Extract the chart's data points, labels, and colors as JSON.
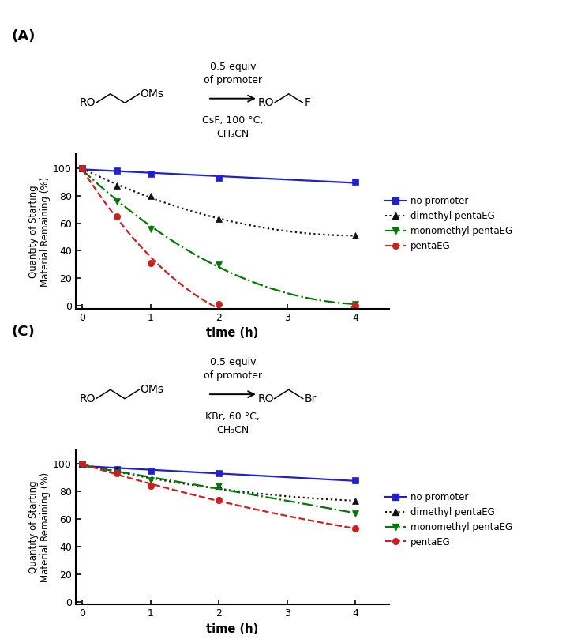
{
  "panel_A": {
    "label": "(A)",
    "reaction_text_top": "0.5 equiv\nof promoter",
    "reaction_text_bottom": "CsF, 100 °C,\nCH₃CN",
    "leaving_right": "F",
    "series": {
      "no_promoter": {
        "x": [
          0,
          0.5,
          1,
          2,
          4
        ],
        "y": [
          100,
          98,
          96,
          93,
          90
        ],
        "color": "#2020CC",
        "marker": "s",
        "linestyle": "-",
        "label": "no promoter"
      },
      "dimethyl": {
        "x": [
          0,
          0.5,
          1,
          2,
          4
        ],
        "y": [
          100,
          87,
          80,
          63,
          51
        ],
        "color": "#111111",
        "marker": "^",
        "linestyle": ":",
        "label": "dimethyl pentaEG"
      },
      "monomethyl": {
        "x": [
          0,
          0.5,
          1,
          2,
          4
        ],
        "y": [
          100,
          76,
          56,
          30,
          1
        ],
        "color": "#007700",
        "marker": "v",
        "linestyle": "-.",
        "label": "monomethyl pentaEG"
      },
      "pentaEG": {
        "x": [
          0,
          0.5,
          1,
          2,
          4
        ],
        "y": [
          100,
          65,
          31,
          1,
          0
        ],
        "color": "#CC2020",
        "marker": "o",
        "linestyle": "--",
        "label": "pentaEG"
      }
    },
    "xlabel": "time (h)",
    "ylabel": "Quantity of Starting\nMaterial Remaining (%)",
    "xlim": [
      -0.1,
      4.5
    ],
    "ylim": [
      -2,
      110
    ],
    "xticks": [
      0,
      1,
      2,
      3,
      4
    ],
    "yticks": [
      0,
      20,
      40,
      60,
      80,
      100
    ]
  },
  "panel_C": {
    "label": "(C)",
    "reaction_text_top": "0.5 equiv\nof promoter",
    "reaction_text_bottom": "KBr, 60 °C,\nCH₃CN",
    "leaving_right": "Br",
    "series": {
      "no_promoter": {
        "x": [
          0,
          0.5,
          1,
          2,
          4
        ],
        "y": [
          100,
          96,
          95,
          93,
          88
        ],
        "color": "#2020CC",
        "marker": "s",
        "linestyle": "-",
        "label": "no promoter"
      },
      "dimethyl": {
        "x": [
          0,
          0.5,
          1,
          2,
          4
        ],
        "y": [
          100,
          96,
          86,
          84,
          73
        ],
        "color": "#111111",
        "marker": "^",
        "linestyle": ":",
        "label": "dimethyl pentaEG"
      },
      "monomethyl": {
        "x": [
          0,
          0.5,
          1,
          2,
          4
        ],
        "y": [
          100,
          94,
          88,
          84,
          64
        ],
        "color": "#007700",
        "marker": "v",
        "linestyle": "-.",
        "label": "monomethyl pentaEG"
      },
      "pentaEG": {
        "x": [
          0,
          0.5,
          1,
          2,
          4
        ],
        "y": [
          100,
          93,
          84,
          74,
          53
        ],
        "color": "#CC2020",
        "marker": "o",
        "linestyle": "--",
        "label": "pentaEG"
      }
    },
    "xlabel": "time (h)",
    "ylabel": "Quantity of Starting\nMaterial Remaining (%)",
    "xlim": [
      -0.1,
      4.5
    ],
    "ylim": [
      -2,
      110
    ],
    "xticks": [
      0,
      1,
      2,
      3,
      4
    ],
    "yticks": [
      0,
      20,
      40,
      60,
      80,
      100
    ]
  },
  "background_color": "#FFFFFF",
  "markersize": 6,
  "linewidth": 1.6
}
